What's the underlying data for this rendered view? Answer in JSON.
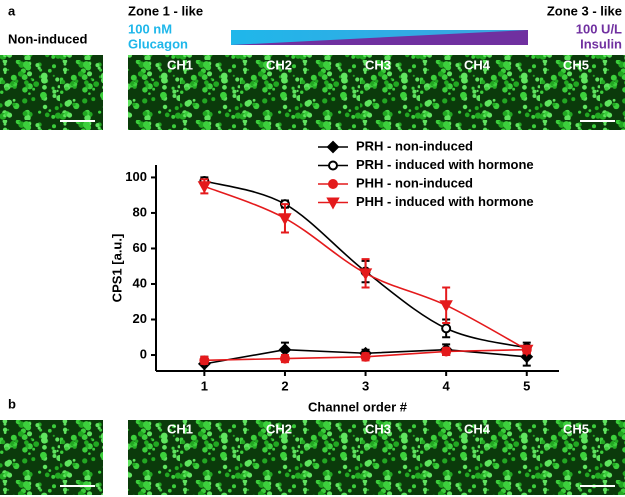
{
  "panel_a": {
    "label": "a",
    "zone1": "Zone 1 - like",
    "zone1_dose": "100 nM",
    "zone1_hormone": "Glucagon",
    "zone3": "Zone 3 - like",
    "zone3_dose": "100 U/L",
    "zone3_hormone": "Insulin",
    "control": "Non-induced",
    "channels": [
      "CH1",
      "CH2",
      "CH3",
      "CH4",
      "CH5"
    ]
  },
  "panel_b": {
    "label": "b",
    "channels": [
      "CH1",
      "CH2",
      "CH3",
      "CH4",
      "CH5"
    ]
  },
  "chart_data": {
    "type": "line",
    "y_label": "CPS1 [a.u.]",
    "x_label": "Channel order #",
    "x": [
      1,
      2,
      3,
      4,
      5
    ],
    "xlim": [
      0.4,
      5.4
    ],
    "xticks": [
      1,
      2,
      3,
      4,
      5
    ],
    "ylim": [
      -9,
      107
    ],
    "yticks": [
      0,
      20,
      40,
      60,
      80,
      100
    ],
    "legend": "upper right",
    "series": [
      {
        "name": "PRH - non-induced",
        "color": "#000000",
        "marker": "diamond",
        "marker_fill": "#000000",
        "curve": "straight",
        "values": [
          -5,
          3,
          1,
          3,
          -1
        ],
        "errors": [
          4,
          4,
          2,
          3,
          5
        ]
      },
      {
        "name": "PRH - induced with hormone",
        "color": "#000000",
        "marker": "circle",
        "marker_fill": "#ffffff",
        "curve": "smooth",
        "values": [
          98,
          85,
          47,
          15,
          4
        ],
        "errors": [
          2,
          2,
          6,
          5,
          3
        ]
      },
      {
        "name": "PHH - non-induced",
        "color": "#e41a1c",
        "marker": "circle",
        "marker_fill": "#e41a1c",
        "curve": "straight",
        "values": [
          -3,
          -2,
          -1,
          2,
          3
        ],
        "errors": [
          2,
          2,
          2,
          2,
          2
        ]
      },
      {
        "name": "PHH - induced with hormone",
        "color": "#e41a1c",
        "marker": "triangle-down",
        "marker_fill": "#e41a1c",
        "curve": "smooth",
        "values": [
          95,
          77,
          46,
          28,
          3
        ],
        "errors": [
          4,
          8,
          8,
          10,
          2
        ]
      }
    ]
  }
}
